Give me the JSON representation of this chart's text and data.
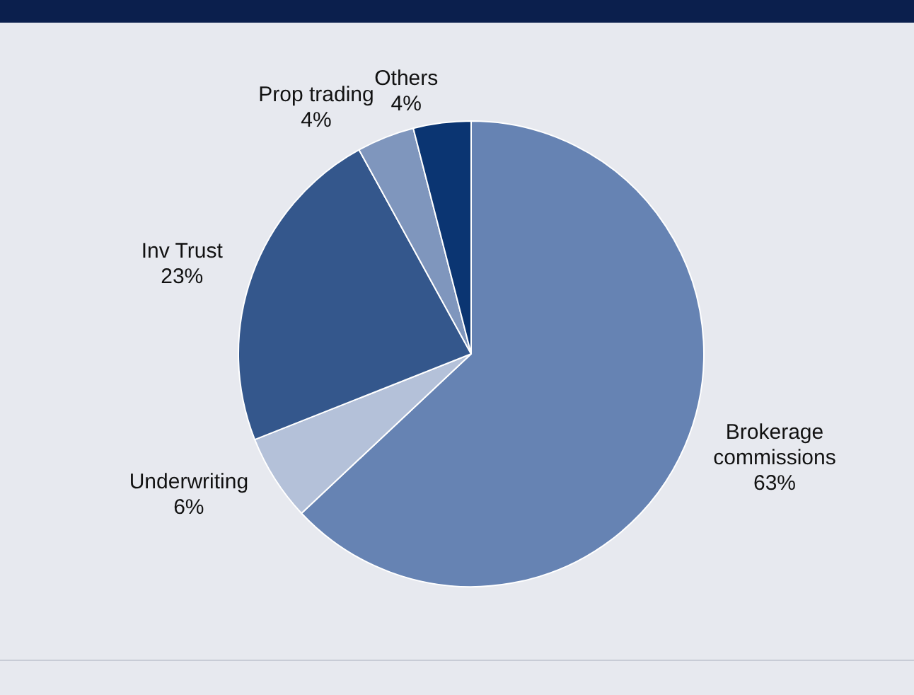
{
  "chart_data": {
    "type": "pie",
    "categories": [
      "Brokerage commissions",
      "Underwriting",
      "Inv Trust",
      "Prop trading",
      "Others"
    ],
    "values": [
      63,
      6,
      23,
      4,
      4
    ],
    "value_labels": [
      "63%",
      "6%",
      "23%",
      "4%",
      "4%"
    ],
    "colors": [
      "#6683b3",
      "#b4c1d9",
      "#34578c",
      "#7f96bd",
      "#0b3572"
    ],
    "legend": false
  }
}
